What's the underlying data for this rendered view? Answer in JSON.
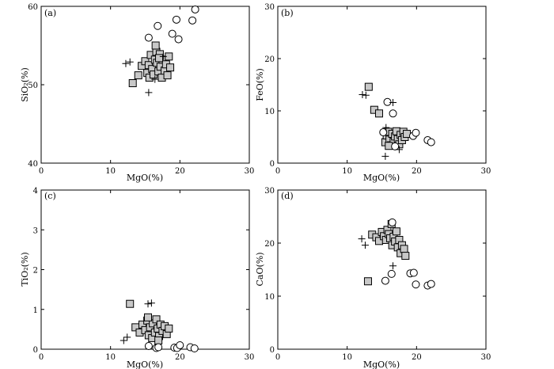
{
  "chart_data": [
    {
      "type": "scatter",
      "panel_label": "(a)",
      "xlabel": "MgO(%)",
      "ylabel": "SiO₂(%)",
      "xlim": [
        0,
        30
      ],
      "ylim": [
        40,
        60
      ],
      "x_ticks": [
        0,
        10,
        20,
        30
      ],
      "y_ticks": [
        40,
        50,
        60
      ],
      "x_tick_labels": [
        "0",
        "10",
        "20",
        "30"
      ],
      "y_tick_labels": [
        "40",
        "50",
        "60"
      ],
      "series": [
        {
          "name": "squares",
          "marker": "square",
          "points": [
            [
              13.2,
              50.2
            ],
            [
              14.0,
              51.2
            ],
            [
              14.5,
              52.4
            ],
            [
              15.0,
              53.0
            ],
            [
              15.3,
              51.5
            ],
            [
              15.5,
              52.5
            ],
            [
              15.6,
              50.9
            ],
            [
              15.8,
              53.8
            ],
            [
              16.0,
              52.0
            ],
            [
              16.2,
              51.3
            ],
            [
              16.4,
              53.2
            ],
            [
              16.6,
              54.2
            ],
            [
              16.7,
              52.8
            ],
            [
              16.9,
              51.7
            ],
            [
              17.1,
              53.9
            ],
            [
              17.2,
              52.3
            ],
            [
              17.4,
              50.9
            ],
            [
              17.5,
              53.2
            ],
            [
              17.8,
              51.8
            ],
            [
              18.0,
              52.6
            ],
            [
              18.2,
              51.2
            ],
            [
              18.4,
              53.6
            ],
            [
              18.6,
              52.2
            ],
            [
              16.5,
              55.0
            ],
            [
              17.0,
              53.4
            ]
          ]
        },
        {
          "name": "circles",
          "marker": "circle",
          "points": [
            [
              22.2,
              59.6
            ],
            [
              21.8,
              58.2
            ],
            [
              19.5,
              58.3
            ],
            [
              16.8,
              57.5
            ],
            [
              18.9,
              56.5
            ],
            [
              19.8,
              55.8
            ],
            [
              15.5,
              56.0
            ]
          ]
        },
        {
          "name": "crosses",
          "marker": "plus",
          "points": [
            [
              12.2,
              52.7
            ],
            [
              12.8,
              52.9
            ],
            [
              15.5,
              49.0
            ],
            [
              16.4,
              50.7
            ],
            [
              17.6,
              53.6
            ]
          ]
        }
      ]
    },
    {
      "type": "scatter",
      "panel_label": "(b)",
      "xlabel": "MgO(%)",
      "ylabel": "FeO(%)",
      "xlim": [
        0,
        30
      ],
      "ylim": [
        0,
        30
      ],
      "x_ticks": [
        0,
        10,
        20,
        30
      ],
      "y_ticks": [
        0,
        10,
        20,
        30
      ],
      "x_tick_labels": [
        "0",
        "10",
        "20",
        "30"
      ],
      "y_tick_labels": [
        "0",
        "10",
        "20",
        "30"
      ],
      "series": [
        {
          "name": "squares",
          "marker": "square",
          "points": [
            [
              13.1,
              14.6
            ],
            [
              13.9,
              10.2
            ],
            [
              14.6,
              9.5
            ],
            [
              15.5,
              4.0
            ],
            [
              15.7,
              5.3
            ],
            [
              15.9,
              6.0
            ],
            [
              16.1,
              4.5
            ],
            [
              16.3,
              3.4
            ],
            [
              16.5,
              5.6
            ],
            [
              16.7,
              4.1
            ],
            [
              16.9,
              5.1
            ],
            [
              17.1,
              6.1
            ],
            [
              17.3,
              4.6
            ],
            [
              17.5,
              3.6
            ],
            [
              17.7,
              5.4
            ],
            [
              17.9,
              4.4
            ],
            [
              18.1,
              6.0
            ],
            [
              18.3,
              5.0
            ],
            [
              18.6,
              5.6
            ],
            [
              16.0,
              3.3
            ]
          ]
        },
        {
          "name": "circles",
          "marker": "circle",
          "points": [
            [
              15.8,
              11.7
            ],
            [
              16.6,
              9.5
            ],
            [
              19.5,
              5.2
            ],
            [
              19.9,
              5.8
            ],
            [
              21.6,
              4.4
            ],
            [
              22.1,
              4.0
            ],
            [
              15.2,
              5.9
            ],
            [
              16.9,
              3.2
            ]
          ]
        },
        {
          "name": "crosses",
          "marker": "plus",
          "points": [
            [
              12.2,
              13.1
            ],
            [
              12.7,
              13.0
            ],
            [
              16.6,
              11.6
            ],
            [
              15.5,
              1.3
            ],
            [
              17.5,
              2.6
            ],
            [
              15.6,
              6.8
            ]
          ]
        }
      ]
    },
    {
      "type": "scatter",
      "panel_label": "(c)",
      "xlabel": "MgO(%)",
      "ylabel": "TiO₂(%)",
      "xlim": [
        0,
        30
      ],
      "ylim": [
        0,
        4
      ],
      "x_ticks": [
        0,
        10,
        20,
        30
      ],
      "y_ticks": [
        0,
        1,
        2,
        3,
        4
      ],
      "x_tick_labels": [
        "0",
        "10",
        "20",
        "30"
      ],
      "y_tick_labels": [
        "0",
        "1",
        "2",
        "3",
        "4"
      ],
      "series": [
        {
          "name": "squares",
          "marker": "square",
          "points": [
            [
              12.8,
              1.14
            ],
            [
              13.6,
              0.55
            ],
            [
              14.2,
              0.42
            ],
            [
              14.6,
              0.62
            ],
            [
              15.0,
              0.48
            ],
            [
              15.3,
              0.72
            ],
            [
              15.5,
              0.35
            ],
            [
              15.7,
              0.55
            ],
            [
              16.0,
              0.28
            ],
            [
              16.1,
              0.65
            ],
            [
              16.4,
              0.42
            ],
            [
              16.6,
              0.75
            ],
            [
              16.8,
              0.52
            ],
            [
              17.0,
              0.33
            ],
            [
              17.2,
              0.62
            ],
            [
              17.5,
              0.46
            ],
            [
              17.8,
              0.58
            ],
            [
              18.1,
              0.38
            ],
            [
              18.4,
              0.52
            ],
            [
              15.4,
              0.8
            ],
            [
              16.9,
              0.22
            ]
          ]
        },
        {
          "name": "circles",
          "marker": "circle",
          "points": [
            [
              15.5,
              0.08
            ],
            [
              16.6,
              0.03
            ],
            [
              16.9,
              0.05
            ],
            [
              19.2,
              0.04
            ],
            [
              19.6,
              0.03
            ],
            [
              20.0,
              0.1
            ],
            [
              21.5,
              0.05
            ],
            [
              22.1,
              0.02
            ]
          ]
        },
        {
          "name": "crosses",
          "marker": "plus",
          "points": [
            [
              11.9,
              0.22
            ],
            [
              12.4,
              0.3
            ],
            [
              15.4,
              1.14
            ],
            [
              15.9,
              1.16
            ]
          ]
        }
      ]
    },
    {
      "type": "scatter",
      "panel_label": "(d)",
      "xlabel": "MgO(%)",
      "ylabel": "CaO(%)",
      "xlim": [
        0,
        30
      ],
      "ylim": [
        0,
        30
      ],
      "x_ticks": [
        0,
        10,
        20,
        30
      ],
      "y_ticks": [
        0,
        10,
        20,
        30
      ],
      "x_tick_labels": [
        "0",
        "10",
        "20",
        "30"
      ],
      "y_tick_labels": [
        "0",
        "10",
        "20",
        "30"
      ],
      "series": [
        {
          "name": "squares",
          "marker": "square",
          "points": [
            [
              13.0,
              12.8
            ],
            [
              13.6,
              21.6
            ],
            [
              14.2,
              21.1
            ],
            [
              14.6,
              20.4
            ],
            [
              15.0,
              22.1
            ],
            [
              15.3,
              21.3
            ],
            [
              15.6,
              20.6
            ],
            [
              15.8,
              22.5
            ],
            [
              16.0,
              21.7
            ],
            [
              16.2,
              20.9
            ],
            [
              16.4,
              23.6
            ],
            [
              16.5,
              19.6
            ],
            [
              16.7,
              21.2
            ],
            [
              16.9,
              20.3
            ],
            [
              17.1,
              22.2
            ],
            [
              17.3,
              19.2
            ],
            [
              17.5,
              20.6
            ],
            [
              17.7,
              18.1
            ],
            [
              17.9,
              19.6
            ],
            [
              18.2,
              18.9
            ],
            [
              18.4,
              17.6
            ]
          ]
        },
        {
          "name": "circles",
          "marker": "circle",
          "points": [
            [
              16.5,
              23.9
            ],
            [
              15.5,
              12.9
            ],
            [
              16.4,
              14.2
            ],
            [
              19.1,
              14.3
            ],
            [
              19.6,
              14.4
            ],
            [
              19.9,
              12.2
            ],
            [
              21.6,
              12.0
            ],
            [
              22.1,
              12.3
            ]
          ]
        },
        {
          "name": "crosses",
          "marker": "plus",
          "points": [
            [
              12.1,
              20.8
            ],
            [
              12.6,
              19.6
            ],
            [
              16.6,
              15.7
            ]
          ]
        }
      ]
    }
  ]
}
